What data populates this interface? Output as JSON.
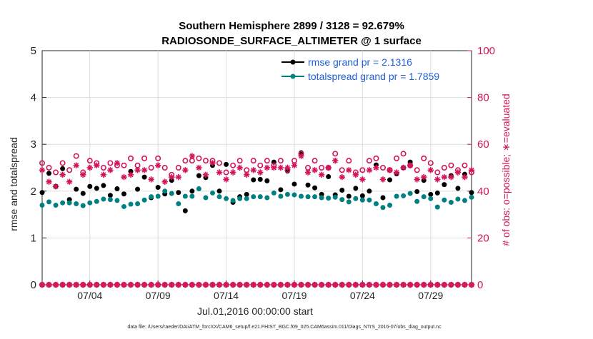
{
  "colors": {
    "rmse": "#000000",
    "spread": "#008080",
    "obs": "#d4145a",
    "legend_text": "#1f5fd6",
    "axis": "#262626"
  },
  "chart_data": {
    "type": "scatter",
    "title_line1": "Southern Hemisphere 2899 / 3128 = 92.679%",
    "title_line2": "RADIOSONDE_SURFACE_ALTIMETER @ 1 surface",
    "ylabel_left": "rmse and totalspread",
    "ylabel_right": "# of obs: o=possible; ∗=evaluated",
    "xlabel": "Jul.01,2016 00:00:00 start",
    "footnote": "data file: /Users/raeder/DAI/ATM_forcXX/CAM6_setup/f.e21.FHIST_BGC.f09_025.CAM6assim.011/Diags_NTrS_2016-07/obs_diag_output.nc",
    "xlim": [
      0.5,
      32
    ],
    "ylim_left": [
      0,
      5
    ],
    "ylim_right": [
      0,
      100
    ],
    "yticks_left": [
      "0",
      "1",
      "2",
      "3",
      "4",
      "5"
    ],
    "yticks_right": [
      "0",
      "20",
      "40",
      "60",
      "80",
      "100"
    ],
    "xticks": [
      {
        "value": 4,
        "label": "07/04"
      },
      {
        "value": 9,
        "label": "07/09"
      },
      {
        "value": 14,
        "label": "07/14"
      },
      {
        "value": 19,
        "label": "07/19"
      },
      {
        "value": 24,
        "label": "07/24"
      },
      {
        "value": 29,
        "label": "07/29"
      }
    ],
    "legend": [
      {
        "name": "rmse",
        "label": "rmse grand pr = 2.1316"
      },
      {
        "name": "totalspread",
        "label": "totalspread grand pr = 1.7859"
      }
    ],
    "x": [
      0.5,
      1,
      1.5,
      2,
      2.5,
      3,
      3.5,
      4,
      4.5,
      5,
      5.5,
      6,
      6.5,
      7,
      7.5,
      8,
      8.5,
      9,
      9.5,
      10,
      10.5,
      11,
      11.5,
      12,
      12.5,
      13,
      13.5,
      14,
      14.5,
      15,
      15.5,
      16,
      16.5,
      17,
      17.5,
      18,
      18.5,
      19,
      19.5,
      20,
      20.5,
      21,
      21.5,
      22,
      22.5,
      23,
      23.5,
      24,
      24.5,
      25,
      25.5,
      26,
      26.5,
      27,
      27.5,
      28,
      28.5,
      29,
      29.5,
      30,
      30.5,
      31,
      31.5,
      32
    ],
    "series": [
      {
        "name": "rmse",
        "marker": "filled-circle",
        "values": [
          1.97,
          2.38,
          2.1,
          2.48,
          1.82,
          2.04,
          1.95,
          2.1,
          2.06,
          2.12,
          1.91,
          2.05,
          1.94,
          2.42,
          2.04,
          2.3,
          1.86,
          2.08,
          1.94,
          2.23,
          1.97,
          1.58,
          2.0,
          2.33,
          2.29,
          2.55,
          2.0,
          2.57,
          1.76,
          1.88,
          1.93,
          2.24,
          2.25,
          2.22,
          2.62,
          2.03,
          2.43,
          2.15,
          2.82,
          2.13,
          2.07,
          1.93,
          2.31,
          1.92,
          2.02,
          1.89,
          2.06,
          1.9,
          2.0,
          2.56,
          1.86,
          2.24,
          2.37,
          2.5,
          2.62,
          1.99,
          2.23,
          1.93,
          1.96,
          2.14,
          2.33,
          2.06,
          2.36,
          1.97
        ]
      },
      {
        "name": "totalspread",
        "marker": "filled-circle",
        "values": [
          1.7,
          1.77,
          1.7,
          1.75,
          1.75,
          1.73,
          1.69,
          1.75,
          1.78,
          1.83,
          1.82,
          1.8,
          1.67,
          1.72,
          1.73,
          1.81,
          1.88,
          1.89,
          2.0,
          1.95,
          1.73,
          1.89,
          1.89,
          2.05,
          1.86,
          1.96,
          1.88,
          1.84,
          1.8,
          1.84,
          1.84,
          1.88,
          1.88,
          1.86,
          1.96,
          1.89,
          1.93,
          1.92,
          1.89,
          1.88,
          1.88,
          1.86,
          1.85,
          1.87,
          1.82,
          1.77,
          1.84,
          1.81,
          1.81,
          1.73,
          1.65,
          1.7,
          1.89,
          1.9,
          1.95,
          1.78,
          1.88,
          1.84,
          1.66,
          1.81,
          1.76,
          1.83,
          1.8,
          1.87
        ]
      },
      {
        "name": "obs_possible",
        "marker": "open-circle",
        "axis": "right",
        "values": [
          52,
          50,
          48,
          52,
          49,
          55,
          48,
          53,
          52,
          50,
          52,
          51,
          51,
          54,
          51,
          54,
          50,
          54,
          50,
          47,
          50,
          53,
          53,
          54,
          53,
          53,
          52,
          48,
          51,
          53,
          49,
          53,
          51,
          53,
          51,
          53,
          49,
          53,
          56,
          50,
          53,
          50,
          50,
          56,
          49,
          53,
          48,
          49,
          53,
          54,
          50,
          49,
          54,
          56,
          51,
          49,
          54,
          52,
          48,
          50,
          51,
          49,
          51,
          48
        ]
      },
      {
        "name": "obs_evaluated",
        "marker": "asterisk",
        "axis": "right",
        "values": [
          49,
          44,
          42,
          47,
          44,
          51,
          47,
          50,
          51,
          47,
          49,
          52,
          46,
          47,
          49,
          49,
          45,
          51,
          44,
          46,
          46,
          49,
          55,
          50,
          47,
          52,
          48,
          45,
          48,
          50,
          47,
          49,
          48,
          50,
          50,
          50,
          50,
          51,
          55,
          48,
          49,
          47,
          50,
          53,
          46,
          49,
          47,
          45,
          49,
          50,
          45,
          49,
          48,
          50,
          51,
          45,
          46,
          49,
          45,
          46,
          46,
          48,
          46,
          49
        ]
      },
      {
        "name": "obs_zero_possible",
        "marker": "open-circle",
        "axis": "right",
        "values": [
          0,
          0,
          0,
          0,
          0,
          0,
          0,
          0,
          0,
          0,
          0,
          0,
          0,
          0,
          0,
          0,
          0,
          0,
          0,
          0,
          0,
          0,
          0,
          0,
          0,
          0,
          0,
          0,
          0,
          0,
          0,
          0,
          0,
          0,
          0,
          0,
          0,
          0,
          0,
          0,
          0,
          0,
          0,
          0,
          0,
          0,
          0,
          0,
          0,
          0,
          0,
          0,
          0,
          0,
          0,
          0,
          0,
          0,
          0,
          0,
          0,
          0,
          0,
          0
        ]
      },
      {
        "name": "obs_zero_evaluated",
        "marker": "asterisk",
        "axis": "right",
        "values": [
          0,
          0,
          0,
          0,
          0,
          0,
          0,
          0,
          0,
          0,
          0,
          0,
          0,
          0,
          0,
          0,
          0,
          0,
          0,
          0,
          0,
          0,
          0,
          0,
          0,
          0,
          0,
          0,
          0,
          0,
          0,
          0,
          0,
          0,
          0,
          0,
          0,
          0,
          0,
          0,
          0,
          0,
          0,
          0,
          0,
          0,
          0,
          0,
          0,
          0,
          0,
          0,
          0,
          0,
          0,
          0,
          0,
          0,
          0,
          0,
          0,
          0,
          0,
          0
        ]
      }
    ]
  }
}
